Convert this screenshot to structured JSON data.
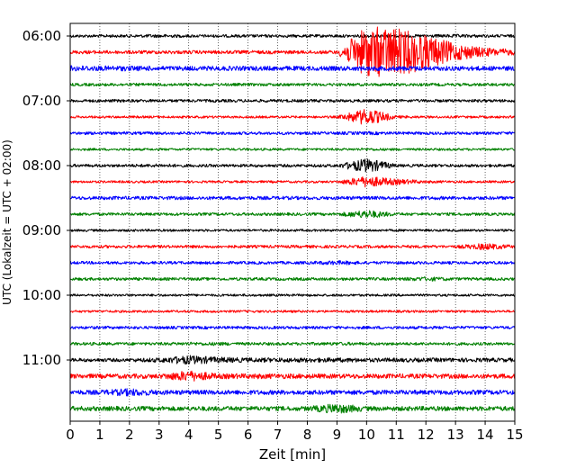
{
  "chart_data": {
    "type": "line",
    "title": "",
    "xlabel": "Zeit  [min]",
    "ylabel": "UTC (Lokalzeit = UTC + 02:00)",
    "xlim": [
      0,
      15
    ],
    "xticks": [
      "0",
      "1",
      "2",
      "3",
      "4",
      "5",
      "6",
      "7",
      "8",
      "9",
      "10",
      "11",
      "12",
      "13",
      "14",
      "15"
    ],
    "yticks": [
      "06:00",
      "07:00",
      "08:00",
      "09:00",
      "10:00",
      "11:00"
    ],
    "grid": "vertical dotted at each minute",
    "row_interval_min": 15,
    "first_row_utc": "06:00",
    "last_row_utc": "11:45",
    "row_colors": [
      "#000000",
      "#ff0000",
      "#0000ff",
      "#008000"
    ],
    "series": [
      {
        "values": [
          0.5,
          0.5,
          0.5,
          0.6,
          0.5,
          0.5,
          0.5,
          0.5,
          0.5,
          0.5,
          0.5,
          0.5,
          0.5,
          0.6,
          0.5,
          0.5
        ]
      },
      {
        "values": [
          0.6,
          0.6,
          0.6,
          0.6,
          0.6,
          0.6,
          0.6,
          0.6,
          0.6,
          0.6,
          9.0,
          8.5,
          6.0,
          3.0,
          1.5,
          1.0
        ]
      },
      {
        "values": [
          1.0,
          0.9,
          0.9,
          0.8,
          0.8,
          0.8,
          0.8,
          0.8,
          0.8,
          0.8,
          0.8,
          0.8,
          0.8,
          0.8,
          0.8,
          0.8
        ]
      },
      {
        "values": [
          0.5,
          0.5,
          0.5,
          0.5,
          0.5,
          0.5,
          0.5,
          0.5,
          0.5,
          0.5,
          0.5,
          0.5,
          0.5,
          0.5,
          0.5,
          0.5
        ]
      },
      {
        "values": [
          0.5,
          0.5,
          0.5,
          0.5,
          0.5,
          0.5,
          0.5,
          0.5,
          0.5,
          0.5,
          0.5,
          0.5,
          0.5,
          0.5,
          0.5,
          0.5
        ]
      },
      {
        "values": [
          0.4,
          0.4,
          0.4,
          0.4,
          0.4,
          0.4,
          0.4,
          0.4,
          0.4,
          0.4,
          3.0,
          0.5,
          0.4,
          0.4,
          0.4,
          0.4
        ]
      },
      {
        "values": [
          0.5,
          0.5,
          0.5,
          0.5,
          0.5,
          0.5,
          0.5,
          0.5,
          0.5,
          0.5,
          0.6,
          0.5,
          0.5,
          0.5,
          0.5,
          0.5
        ]
      },
      {
        "values": [
          0.4,
          0.4,
          0.4,
          0.4,
          0.4,
          0.4,
          0.4,
          0.4,
          0.4,
          0.4,
          0.5,
          0.4,
          0.4,
          0.4,
          0.4,
          0.4
        ]
      },
      {
        "values": [
          0.5,
          0.5,
          0.5,
          0.6,
          0.5,
          0.5,
          0.5,
          0.5,
          0.5,
          0.5,
          2.5,
          0.5,
          0.5,
          0.5,
          0.5,
          0.5
        ]
      },
      {
        "values": [
          0.4,
          0.4,
          0.4,
          0.4,
          0.4,
          0.4,
          0.4,
          0.4,
          0.4,
          0.4,
          2.0,
          1.0,
          0.5,
          0.4,
          0.4,
          0.4
        ]
      },
      {
        "values": [
          0.6,
          0.6,
          0.6,
          0.6,
          0.6,
          0.6,
          0.6,
          0.6,
          0.6,
          0.6,
          0.6,
          0.6,
          0.6,
          0.6,
          0.6,
          0.6
        ]
      },
      {
        "values": [
          0.5,
          0.5,
          0.5,
          0.5,
          0.5,
          0.5,
          0.5,
          0.5,
          0.5,
          0.5,
          1.5,
          0.5,
          0.5,
          0.5,
          0.5,
          0.5
        ]
      },
      {
        "values": [
          0.4,
          0.4,
          0.4,
          0.4,
          0.4,
          0.4,
          0.4,
          0.4,
          0.4,
          0.4,
          0.4,
          0.4,
          0.4,
          0.4,
          0.4,
          0.4
        ]
      },
      {
        "values": [
          0.5,
          0.5,
          0.5,
          0.5,
          0.5,
          0.5,
          0.5,
          0.5,
          0.5,
          0.5,
          0.5,
          0.5,
          0.5,
          0.5,
          1.2,
          0.5
        ]
      },
      {
        "values": [
          0.5,
          0.5,
          0.5,
          0.5,
          0.5,
          0.5,
          0.5,
          0.5,
          0.5,
          0.8,
          0.5,
          0.5,
          0.5,
          0.5,
          0.5,
          0.5
        ]
      },
      {
        "values": [
          0.5,
          0.5,
          0.5,
          0.5,
          0.5,
          0.5,
          0.5,
          0.5,
          0.5,
          0.5,
          0.5,
          0.5,
          0.8,
          0.5,
          0.5,
          0.5
        ]
      },
      {
        "values": [
          0.4,
          0.4,
          0.4,
          0.4,
          0.4,
          0.4,
          0.4,
          0.4,
          0.4,
          0.4,
          0.4,
          0.4,
          0.4,
          0.4,
          0.4,
          0.4
        ]
      },
      {
        "values": [
          0.4,
          0.4,
          0.4,
          0.4,
          0.4,
          0.4,
          0.4,
          0.4,
          0.4,
          0.4,
          0.4,
          0.4,
          0.4,
          0.4,
          0.4,
          0.4
        ]
      },
      {
        "values": [
          0.5,
          0.5,
          0.5,
          0.5,
          0.5,
          0.5,
          0.5,
          0.5,
          0.5,
          0.5,
          0.5,
          0.5,
          0.5,
          0.5,
          0.5,
          0.5
        ]
      },
      {
        "values": [
          0.5,
          0.5,
          0.5,
          0.5,
          0.6,
          0.6,
          0.5,
          0.5,
          0.5,
          0.6,
          0.5,
          0.5,
          0.5,
          0.5,
          0.5,
          0.5
        ]
      },
      {
        "values": [
          0.6,
          0.6,
          0.6,
          0.8,
          1.6,
          1.0,
          0.8,
          0.8,
          0.8,
          0.8,
          0.7,
          0.7,
          0.7,
          0.7,
          0.7,
          0.7
        ]
      },
      {
        "values": [
          0.8,
          0.8,
          0.8,
          0.8,
          2.0,
          0.9,
          0.9,
          0.9,
          0.8,
          0.8,
          0.8,
          0.8,
          0.8,
          0.8,
          0.8,
          0.8
        ]
      },
      {
        "values": [
          0.8,
          0.8,
          1.4,
          0.8,
          0.8,
          0.8,
          0.8,
          0.8,
          0.8,
          0.8,
          0.8,
          0.8,
          0.8,
          0.8,
          0.8,
          0.8
        ]
      },
      {
        "values": [
          0.8,
          0.8,
          0.8,
          0.8,
          0.8,
          0.8,
          0.8,
          0.8,
          0.8,
          1.8,
          0.8,
          0.8,
          0.8,
          0.8,
          0.8,
          0.8
        ]
      }
    ]
  }
}
